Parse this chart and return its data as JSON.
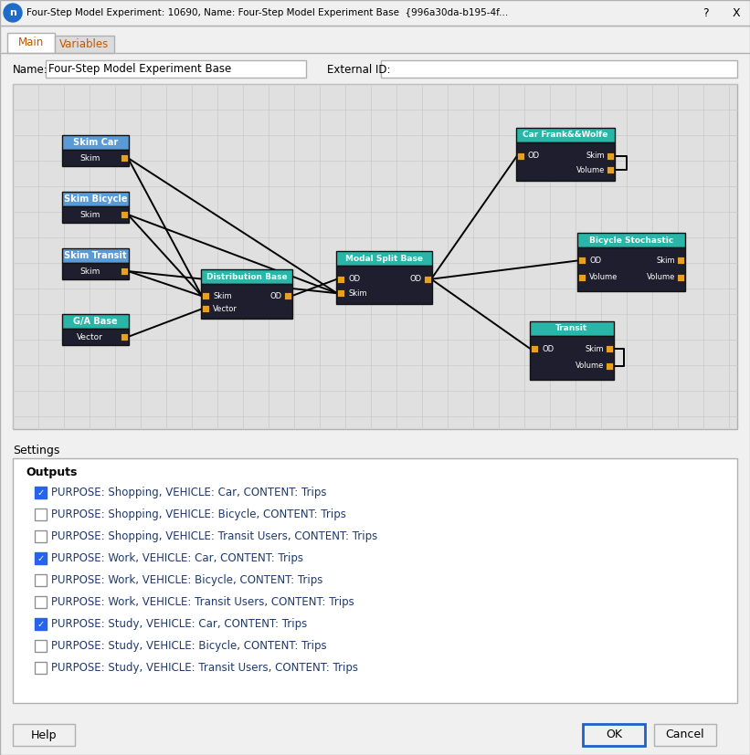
{
  "title_bar_text": "Four-Step Model Experiment: 10690, Name: Four-Step Model Experiment Base  {996a30da-b195-4f...",
  "tab_main": "Main",
  "tab_variables": "Variables",
  "name_label": "Name:",
  "name_value": "Four-Step Model Experiment Base",
  "external_id_label": "External ID:",
  "settings_label": "Settings",
  "outputs_label": "Outputs",
  "outputs": [
    {
      "text": "PURPOSE: Shopping, VEHICLE: Car, CONTENT: Trips",
      "checked": true
    },
    {
      "text": "PURPOSE: Shopping, VEHICLE: Bicycle, CONTENT: Trips",
      "checked": false
    },
    {
      "text": "PURPOSE: Shopping, VEHICLE: Transit Users, CONTENT: Trips",
      "checked": false
    },
    {
      "text": "PURPOSE: Work, VEHICLE: Car, CONTENT: Trips",
      "checked": true
    },
    {
      "text": "PURPOSE: Work, VEHICLE: Bicycle, CONTENT: Trips",
      "checked": false
    },
    {
      "text": "PURPOSE: Work, VEHICLE: Transit Users, CONTENT: Trips",
      "checked": false
    },
    {
      "text": "PURPOSE: Study, VEHICLE: Car, CONTENT: Trips",
      "checked": true
    },
    {
      "text": "PURPOSE: Study, VEHICLE: Bicycle, CONTENT: Trips",
      "checked": false
    },
    {
      "text": "PURPOSE: Study, VEHICLE: Transit Users, CONTENT: Trips",
      "checked": false
    }
  ],
  "button_help": "Help",
  "button_ok": "OK",
  "button_cancel": "Cancel",
  "bg_color": "#f0f0f0",
  "node_dark_bg": "#1e1e2e",
  "node_teal": "#2ab5a8",
  "node_blue": "#5b9bd5",
  "node_orange": "#e8a020",
  "checkbox_checked_color": "#2563eb",
  "output_text_color": "#1e3a6b"
}
